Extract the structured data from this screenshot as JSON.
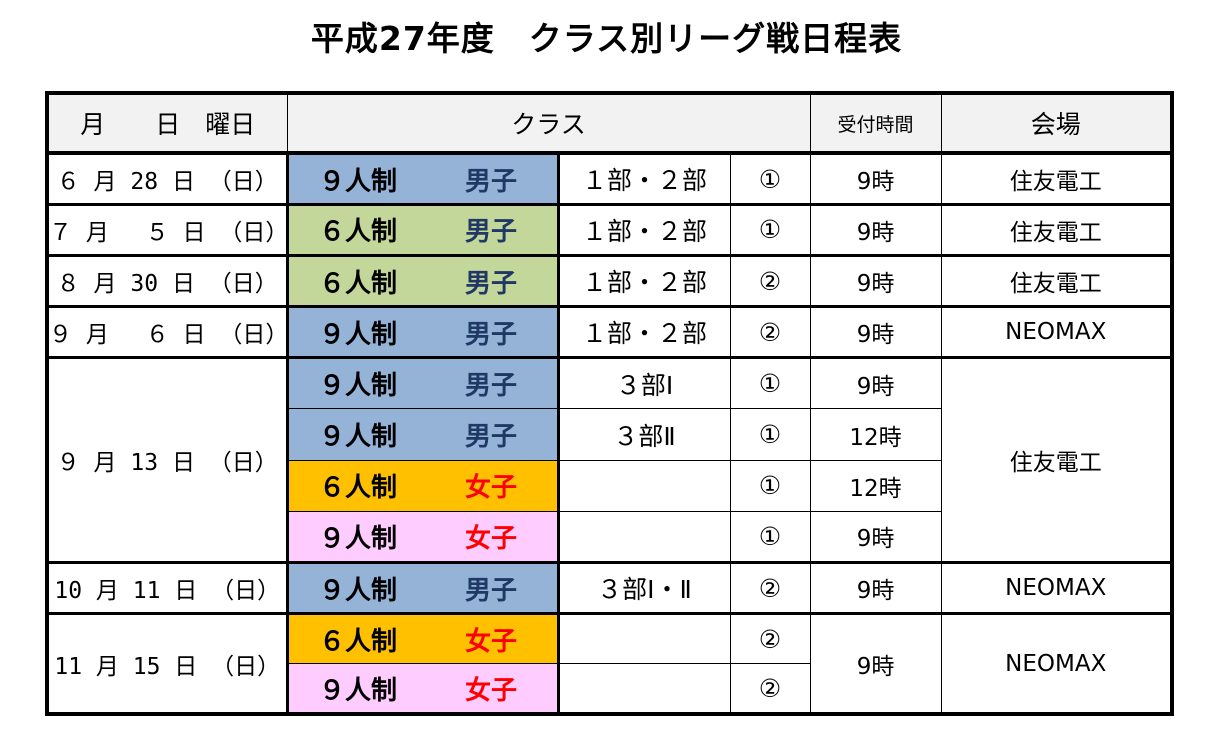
{
  "title": "平成27年度　クラス別リーグ戦日程表",
  "colors": {
    "blue": "#95b3d7",
    "green": "#c4d79b",
    "orange": "#ffc000",
    "pink": "#ffccff",
    "men_text": "#1f3864",
    "women_text": "#ff0000",
    "header_bg": "#f2f2f2"
  },
  "headers": {
    "date": "月　　日　曜日",
    "class": "クラス",
    "reception_time": "受付時間",
    "venue": "会場"
  },
  "rows": [
    {
      "date": "６ 月 28 日 （日）",
      "format": "９人制",
      "format_color": "blue",
      "gender": "男子",
      "gender_color": "men_text",
      "division": "１部・２部",
      "circle": "①",
      "time": "9時",
      "venue": "住友電工"
    },
    {
      "date": "７ 月 　５ 日 （日）",
      "format": "６人制",
      "format_color": "green",
      "gender": "男子",
      "gender_color": "men_text",
      "division": "１部・２部",
      "circle": "①",
      "time": "9時",
      "venue": "住友電工"
    },
    {
      "date": "８ 月 30 日 （日）",
      "format": "６人制",
      "format_color": "green",
      "gender": "男子",
      "gender_color": "men_text",
      "division": "１部・２部",
      "circle": "②",
      "time": "9時",
      "venue": "住友電工"
    },
    {
      "date": "９ 月 　６ 日 （日）",
      "format": "９人制",
      "format_color": "blue",
      "gender": "男子",
      "gender_color": "men_text",
      "division": "１部・２部",
      "circle": "②",
      "time": "9時",
      "venue": "NEOMAX"
    },
    {
      "date": "９ 月 13 日 （日）",
      "format": "９人制",
      "format_color": "blue",
      "gender": "男子",
      "gender_color": "men_text",
      "division": "３部Ⅰ",
      "circle": "①",
      "time": "9時",
      "venue": "住友電工"
    },
    {
      "date": "",
      "format": "９人制",
      "format_color": "blue",
      "gender": "男子",
      "gender_color": "men_text",
      "division": "３部Ⅱ",
      "circle": "①",
      "time": "12時",
      "venue": ""
    },
    {
      "date": "",
      "format": "６人制",
      "format_color": "orange",
      "gender": "女子",
      "gender_color": "women_text",
      "division": "",
      "circle": "①",
      "time": "12時",
      "venue": ""
    },
    {
      "date": "",
      "format": "９人制",
      "format_color": "pink",
      "gender": "女子",
      "gender_color": "women_text",
      "division": "",
      "circle": "①",
      "time": "9時",
      "venue": ""
    },
    {
      "date": "10 月 11 日 （日）",
      "format": "９人制",
      "format_color": "blue",
      "gender": "男子",
      "gender_color": "men_text",
      "division": "３部Ⅰ・Ⅱ",
      "circle": "②",
      "time": "9時",
      "venue": "NEOMAX"
    },
    {
      "date": "11 月 15 日 （日）",
      "format": "６人制",
      "format_color": "orange",
      "gender": "女子",
      "gender_color": "women_text",
      "division": "",
      "circle": "②",
      "time": "9時",
      "venue": "NEOMAX"
    },
    {
      "date": "",
      "format": "９人制",
      "format_color": "pink",
      "gender": "女子",
      "gender_color": "women_text",
      "division": "",
      "circle": "②",
      "time": "",
      "venue": ""
    }
  ]
}
